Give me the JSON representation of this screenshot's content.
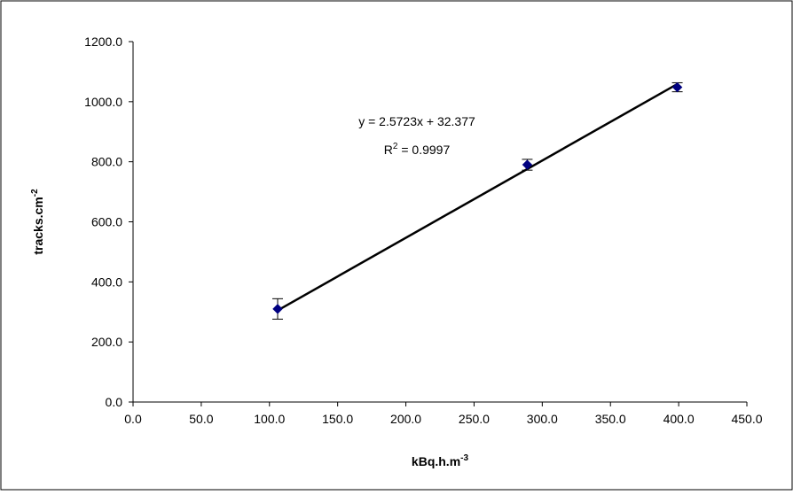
{
  "chart_data": {
    "type": "scatter",
    "x_label": {
      "text": "kBq.h.m",
      "sup": "-3"
    },
    "y_label": {
      "text": "tracks.cm",
      "sup": "-2"
    },
    "x": [
      106,
      289,
      399
    ],
    "series": [
      {
        "color": "#000080",
        "values": [
          310,
          790,
          1048
        ],
        "errors": [
          34,
          18,
          15
        ]
      }
    ],
    "trendline": {
      "slope": 2.5723,
      "intercept": 32.377,
      "equation": "y = 2.5723x + 32.377",
      "r2_text": "R",
      "r2_sup": "2",
      "r2_value": " = 0.9997"
    },
    "xlim": [
      0,
      450
    ],
    "xticks": [
      {
        "value": 0,
        "label": "0.0"
      },
      {
        "value": 50,
        "label": "50.0"
      },
      {
        "value": 100,
        "label": "100.0"
      },
      {
        "value": 150,
        "label": "150.0"
      },
      {
        "value": 200,
        "label": "200.0"
      },
      {
        "value": 250,
        "label": "250.0"
      },
      {
        "value": 300,
        "label": "300.0"
      },
      {
        "value": 350,
        "label": "350.0"
      },
      {
        "value": 400,
        "label": "400.0"
      },
      {
        "value": 450,
        "label": "450.0"
      }
    ],
    "ylim": [
      0,
      1200
    ],
    "yticks": [
      {
        "value": 0,
        "label": "0.0"
      },
      {
        "value": 200,
        "label": "200.0"
      },
      {
        "value": 400,
        "label": "400.0"
      },
      {
        "value": 600,
        "label": "600.0"
      },
      {
        "value": 800,
        "label": "800.0"
      },
      {
        "value": 1000,
        "label": "1000.0"
      },
      {
        "value": 1200,
        "label": "1200.0"
      }
    ]
  }
}
